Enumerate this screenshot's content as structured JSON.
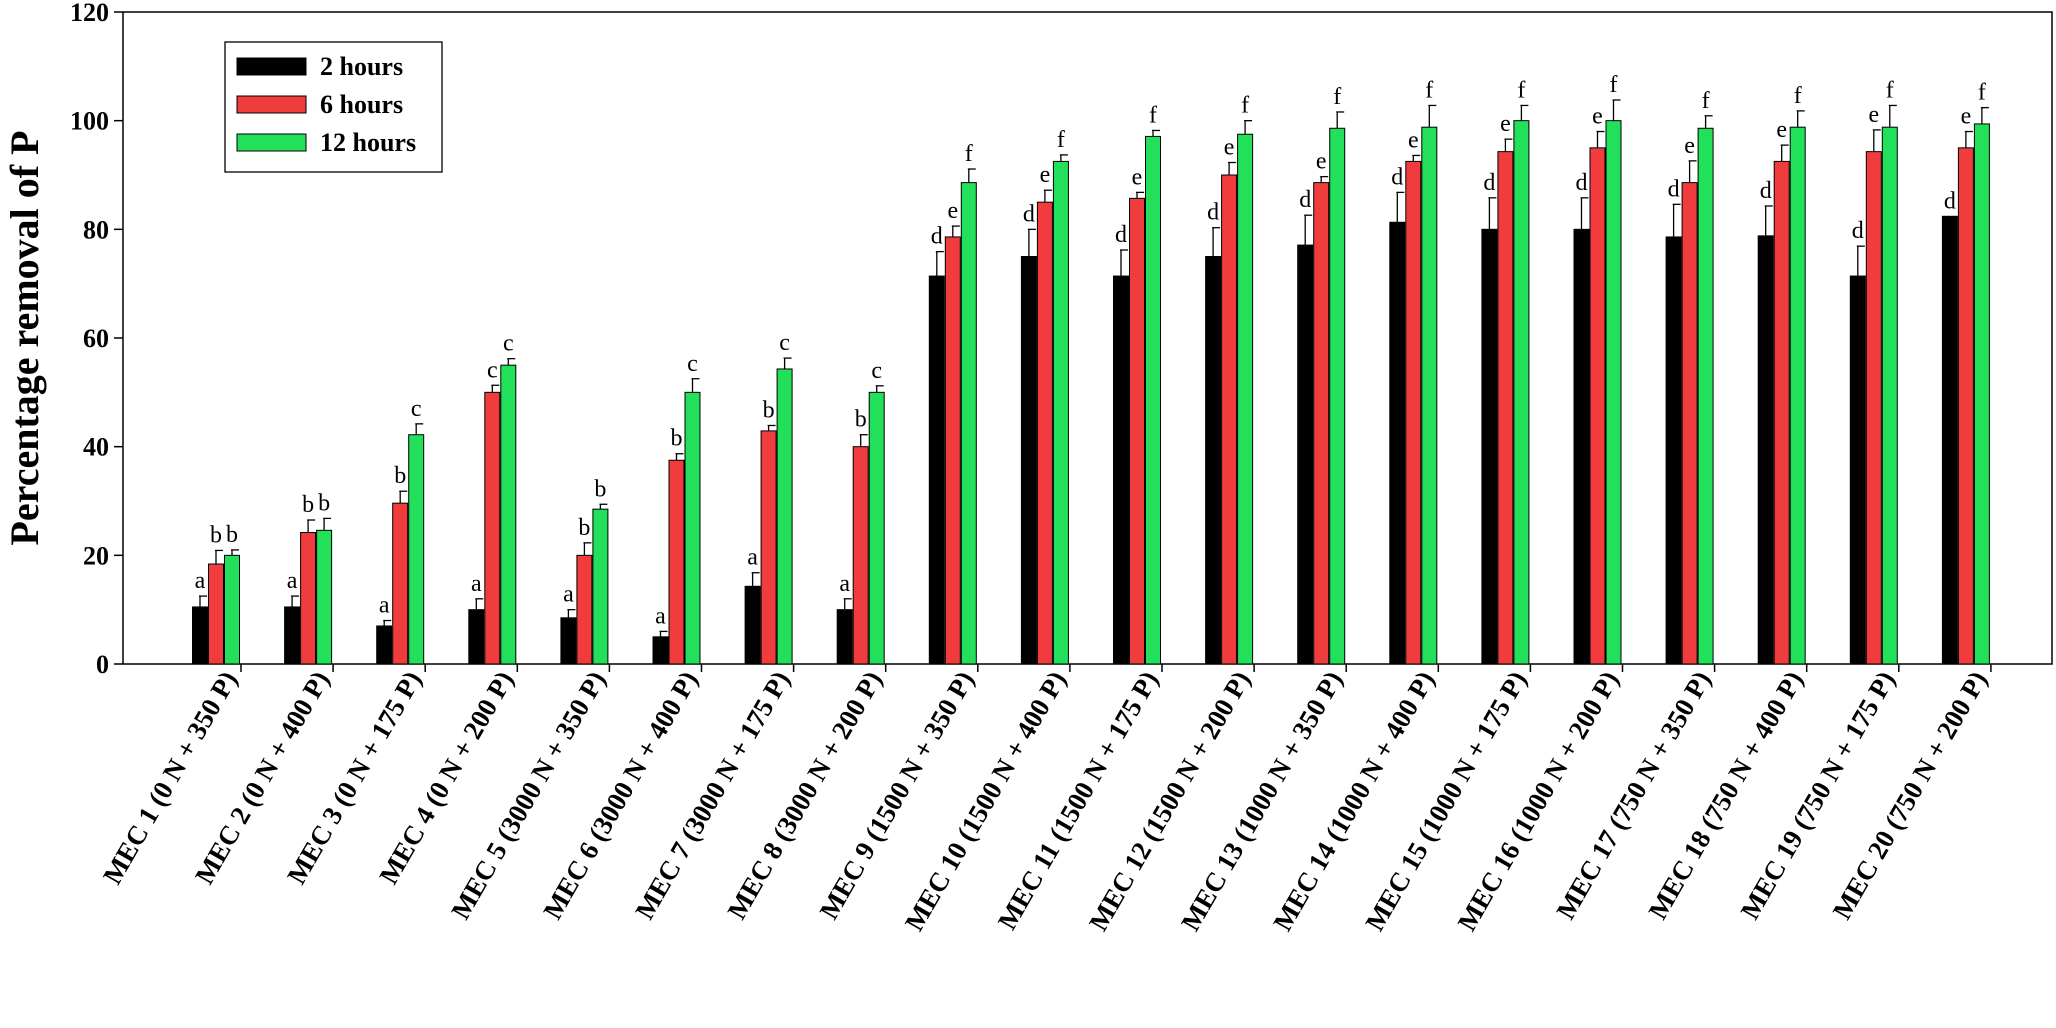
{
  "chart_data": {
    "type": "bar",
    "title": "",
    "xlabel": "",
    "ylabel": "Percentage removal of P",
    "ylim": [
      0,
      120
    ],
    "yticks": [
      0,
      20,
      40,
      60,
      80,
      100,
      120
    ],
    "grid": false,
    "legend_position": "top-left",
    "categories": [
      "MEC 1 (0 N + 350 P)",
      "MEC 2 (0 N + 400 P)",
      "MEC 3 (0 N + 175 P)",
      "MEC 4 (0 N + 200 P)",
      "MEC 5 (3000 N + 350 P)",
      "MEC 6 (3000 N + 400 P)",
      "MEC 7 (3000 N + 175 P)",
      "MEC 8 (3000 N + 200 P)",
      "MEC 9 (1500 N + 350 P)",
      "MEC 10 (1500 N + 400 P)",
      "MEC 11 (1500 N + 175 P)",
      "MEC 12 (1500 N + 200 P)",
      "MEC 13 (1000 N + 350 P)",
      "MEC 14 (1000 N + 400 P)",
      "MEC 15 (1000 N + 175 P)",
      "MEC 16 (1000 N + 200 P)",
      "MEC 17 (750 N + 350 P)",
      "MEC 18 (750 N + 400 P)",
      "MEC 19 (750 N + 175 P)",
      "MEC 20 (750 N + 200 P)"
    ],
    "series": [
      {
        "name": "2 hours",
        "color": "#000000",
        "values": [
          10.5,
          10.5,
          7,
          10,
          8.5,
          5,
          14.3,
          10,
          71.4,
          75,
          71.4,
          75,
          77.1,
          81.3,
          80,
          80,
          78.6,
          78.8,
          71.4,
          82.4
        ],
        "errors": [
          2,
          2,
          1,
          2,
          1.5,
          1,
          2.5,
          2,
          4.5,
          5,
          4.8,
          5.3,
          5.5,
          5.5,
          5.8,
          5.8,
          6,
          5.5,
          5.5,
          0
        ],
        "letters": [
          "a",
          "a",
          "a",
          "a",
          "a",
          "a",
          "a",
          "a",
          "d",
          "d",
          "d",
          "d",
          "d",
          "d",
          "d",
          "d",
          "d",
          "d",
          "d",
          "d"
        ]
      },
      {
        "name": "6 hours",
        "color": "#f03c3c",
        "values": [
          18.4,
          24.2,
          29.6,
          50,
          20,
          37.5,
          42.9,
          40,
          78.6,
          85,
          85.7,
          90,
          88.6,
          92.5,
          94.3,
          95,
          88.6,
          92.5,
          94.3,
          95
        ],
        "errors": [
          2.5,
          2.3,
          2.2,
          1.3,
          2.3,
          1.2,
          1,
          2.2,
          2,
          2.2,
          1.1,
          2.3,
          1.1,
          1.1,
          2.3,
          3,
          4,
          3,
          4,
          3
        ],
        "letters": [
          "b",
          "b",
          "b",
          "c",
          "b",
          "b",
          "b",
          "b",
          "e",
          "e",
          "e",
          "e",
          "e",
          "e",
          "e",
          "e",
          "e",
          "e",
          "e",
          "e"
        ]
      },
      {
        "name": "12 hours",
        "color": "#22e05a",
        "values": [
          20,
          24.6,
          42.2,
          55,
          28.5,
          50,
          54.3,
          50,
          88.6,
          92.5,
          97.1,
          97.5,
          98.6,
          98.8,
          100,
          100,
          98.6,
          98.8,
          98.8,
          99.4
        ],
        "errors": [
          1,
          2.2,
          2,
          1.2,
          0.9,
          2.5,
          2,
          1.2,
          2.5,
          1.2,
          1.1,
          2.5,
          3,
          4,
          2.8,
          3.8,
          2.3,
          3,
          4,
          3
        ],
        "letters": [
          "b",
          "b",
          "c",
          "c",
          "b",
          "c",
          "c",
          "c",
          "f",
          "f",
          "f",
          "f",
          "f",
          "f",
          "f",
          "f",
          "f",
          "f",
          "f",
          "f"
        ]
      }
    ]
  }
}
